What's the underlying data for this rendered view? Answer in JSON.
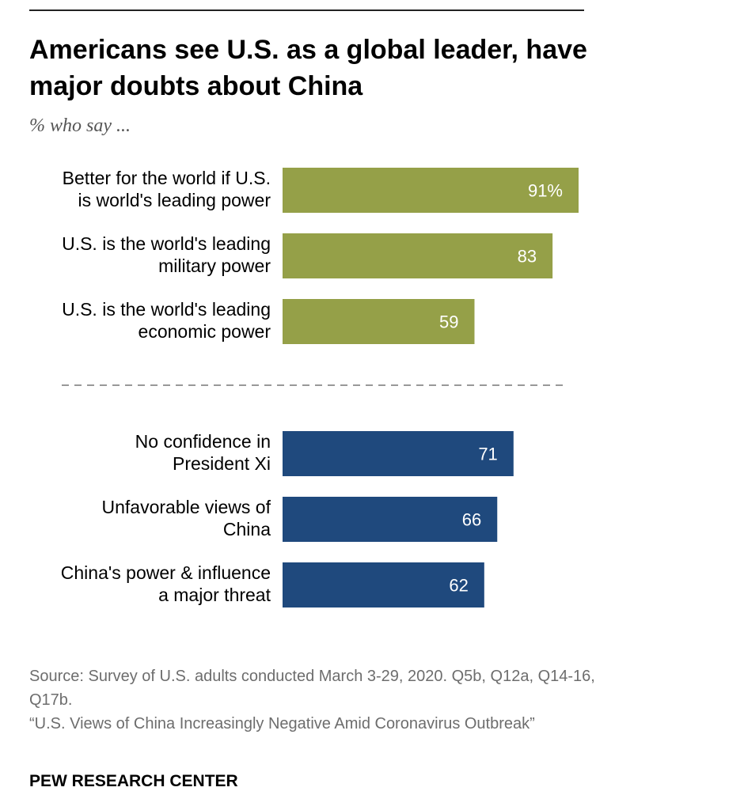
{
  "title": "Americans see U.S. as a global leader, have major doubts about China",
  "subtitle": "% who say ...",
  "source": {
    "line1": "Source: Survey of U.S. adults conducted March 3-29, 2020. Q5b, Q12a, Q14-16, Q17b.",
    "line2": "“U.S. Views of China Increasingly Negative Amid Coronavirus Outbreak”"
  },
  "footer": "PEW RESEARCH CENTER",
  "colors": {
    "us_bar": "#95a048",
    "china_bar": "#1f497d",
    "value_text": "#ffffff",
    "divider": "#777777"
  },
  "chart_data": {
    "type": "bar",
    "orientation": "horizontal",
    "xlim": [
      0,
      100
    ],
    "groups": [
      {
        "color": "#95a048",
        "items": [
          {
            "label_lines": [
              "Better for the world if U.S.",
              "is world's leading power"
            ],
            "value": 91,
            "value_label": "91%"
          },
          {
            "label_lines": [
              "U.S. is the world's leading",
              "military power"
            ],
            "value": 83,
            "value_label": "83"
          },
          {
            "label_lines": [
              "U.S. is the world's leading",
              "economic power"
            ],
            "value": 59,
            "value_label": "59"
          }
        ]
      },
      {
        "color": "#1f497d",
        "items": [
          {
            "label_lines": [
              "No confidence in",
              "President Xi"
            ],
            "value": 71,
            "value_label": "71"
          },
          {
            "label_lines": [
              "Unfavorable views of",
              "China"
            ],
            "value": 66,
            "value_label": "66"
          },
          {
            "label_lines": [
              "China's power & influence",
              "a major threat"
            ],
            "value": 62,
            "value_label": "62"
          }
        ]
      }
    ],
    "divider": "dashed line between groups",
    "grid": false,
    "legend": "none"
  }
}
